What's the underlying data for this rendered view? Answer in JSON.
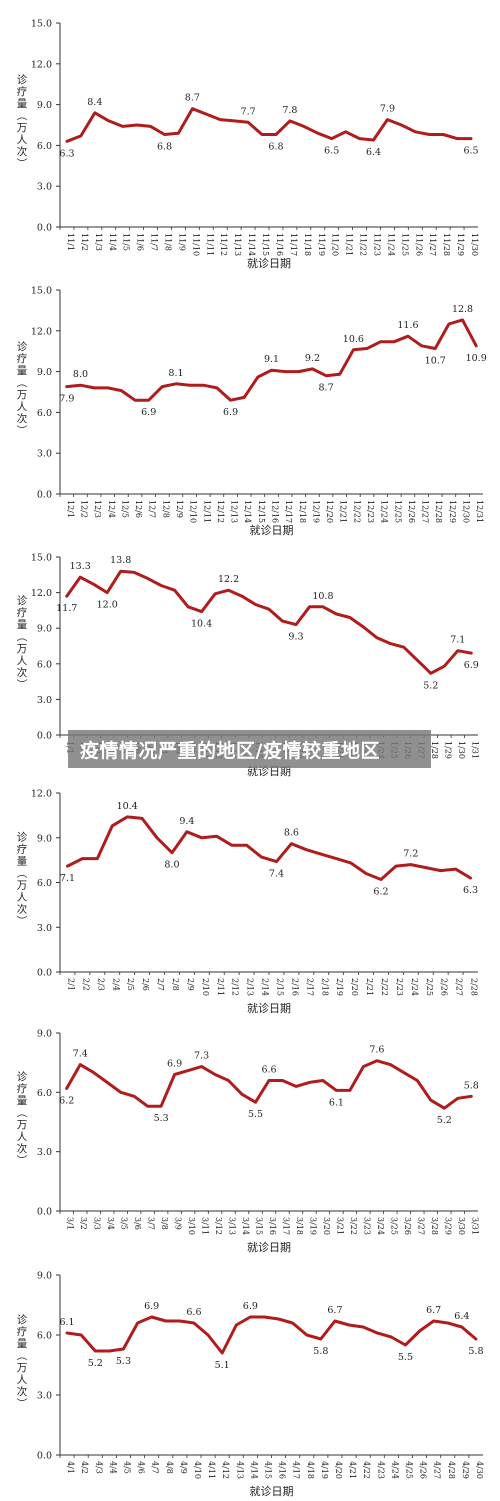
{
  "banner": {
    "text": "疫情情况严重的地区/疫情较重地区"
  },
  "chart_data": [
    {
      "type": "line",
      "ylabel": "诊疗量（万人次）",
      "xlabel": "就诊日期",
      "ylim": [
        0,
        15
      ],
      "yticks": [
        "0.0",
        "3.0",
        "6.0",
        "9.0",
        "12.0",
        "15.0"
      ],
      "color": "#b01c1c",
      "categories": [
        "11/1",
        "11/2",
        "11/3",
        "11/4",
        "11/5",
        "11/6",
        "11/7",
        "11/8",
        "11/9",
        "11/10",
        "11/11",
        "11/12",
        "11/13",
        "11/14",
        "11/15",
        "11/16",
        "11/17",
        "11/18",
        "11/19",
        "11/20",
        "11/21",
        "11/22",
        "11/23",
        "11/24",
        "11/25",
        "11/26",
        "11/27",
        "11/28",
        "11/29",
        "11/30"
      ],
      "values": [
        6.3,
        6.7,
        8.4,
        7.8,
        7.4,
        7.5,
        7.4,
        6.8,
        6.9,
        8.7,
        8.3,
        7.9,
        7.8,
        7.7,
        6.8,
        6.8,
        7.8,
        7.4,
        6.9,
        6.5,
        7.0,
        6.5,
        6.4,
        7.9,
        7.5,
        7.0,
        6.8,
        6.8,
        6.5,
        6.5
      ],
      "labels": [
        {
          "i": 0,
          "t": "6.3",
          "pos": "below"
        },
        {
          "i": 2,
          "t": "8.4",
          "pos": "above"
        },
        {
          "i": 7,
          "t": "6.8",
          "pos": "below"
        },
        {
          "i": 9,
          "t": "8.7",
          "pos": "above"
        },
        {
          "i": 13,
          "t": "7.7",
          "pos": "above"
        },
        {
          "i": 15,
          "t": "6.8",
          "pos": "below"
        },
        {
          "i": 16,
          "t": "7.8",
          "pos": "above"
        },
        {
          "i": 19,
          "t": "6.5",
          "pos": "below"
        },
        {
          "i": 22,
          "t": "6.4",
          "pos": "below"
        },
        {
          "i": 23,
          "t": "7.9",
          "pos": "above"
        },
        {
          "i": 29,
          "t": "6.5",
          "pos": "below"
        }
      ]
    },
    {
      "type": "line",
      "ylabel": "诊疗量（万人次）",
      "xlabel": "就诊日期",
      "ylim": [
        0,
        15
      ],
      "yticks": [
        "0.0",
        "3.0",
        "6.0",
        "9.0",
        "12.0",
        "15.0"
      ],
      "color": "#b01c1c",
      "categories": [
        "12/1",
        "12/2",
        "12/3",
        "12/4",
        "12/5",
        "12/6",
        "12/7",
        "12/8",
        "12/9",
        "12/10",
        "12/11",
        "12/12",
        "12/13",
        "12/14",
        "12/15",
        "12/16",
        "12/17",
        "12/18",
        "12/19",
        "12/20",
        "12/21",
        "12/22",
        "12/23",
        "12/24",
        "12/25",
        "12/26",
        "12/27",
        "12/28",
        "12/29",
        "12/30",
        "12/31"
      ],
      "values": [
        7.9,
        8.0,
        7.8,
        7.8,
        7.6,
        6.9,
        6.9,
        7.9,
        8.1,
        8.0,
        8.0,
        7.8,
        6.9,
        7.1,
        8.6,
        9.1,
        9.0,
        9.0,
        9.2,
        8.7,
        8.8,
        10.6,
        10.7,
        11.2,
        11.2,
        11.6,
        10.9,
        10.7,
        12.5,
        12.8,
        10.9
      ],
      "labels": [
        {
          "i": 0,
          "t": "7.9",
          "pos": "below"
        },
        {
          "i": 1,
          "t": "8.0",
          "pos": "above"
        },
        {
          "i": 6,
          "t": "6.9",
          "pos": "below"
        },
        {
          "i": 8,
          "t": "8.1",
          "pos": "above"
        },
        {
          "i": 12,
          "t": "6.9",
          "pos": "below"
        },
        {
          "i": 15,
          "t": "9.1",
          "pos": "above"
        },
        {
          "i": 18,
          "t": "9.2",
          "pos": "above"
        },
        {
          "i": 19,
          "t": "8.7",
          "pos": "below"
        },
        {
          "i": 21,
          "t": "10.6",
          "pos": "above"
        },
        {
          "i": 25,
          "t": "11.6",
          "pos": "above"
        },
        {
          "i": 27,
          "t": "10.7",
          "pos": "below"
        },
        {
          "i": 29,
          "t": "12.8",
          "pos": "above"
        },
        {
          "i": 30,
          "t": "10.9",
          "pos": "below"
        }
      ]
    },
    {
      "type": "line",
      "ylabel": "诊疗量（万人次）",
      "xlabel": "就诊日期",
      "ylim": [
        0,
        15
      ],
      "yticks": [
        "0.0",
        "3.0",
        "6.0",
        "9.0",
        "12.0",
        "15.0"
      ],
      "color": "#b01c1c",
      "categories": [
        "1/1",
        "1/2",
        "1/3",
        "1/4",
        "1/5",
        "1/6",
        "1/7",
        "1/8",
        "1/9",
        "1/10",
        "1/11",
        "1/12",
        "1/13",
        "1/14",
        "1/15",
        "1/16",
        "1/17",
        "1/18",
        "1/19",
        "1/20",
        "1/21",
        "1/22",
        "1/23",
        "1/24",
        "1/25",
        "1/26",
        "1/27",
        "1/28",
        "1/29",
        "1/30",
        "1/31"
      ],
      "values": [
        11.7,
        13.3,
        12.7,
        12.0,
        13.8,
        13.7,
        13.2,
        12.6,
        12.2,
        10.8,
        10.4,
        11.9,
        12.2,
        11.7,
        11.0,
        10.6,
        9.6,
        9.3,
        10.8,
        10.8,
        10.2,
        9.9,
        9.1,
        8.2,
        7.7,
        7.4,
        6.3,
        5.2,
        5.8,
        7.1,
        6.9
      ],
      "labels": [
        {
          "i": 0,
          "t": "11.7",
          "pos": "below"
        },
        {
          "i": 1,
          "t": "13.3",
          "pos": "above"
        },
        {
          "i": 3,
          "t": "12.0",
          "pos": "below"
        },
        {
          "i": 4,
          "t": "13.8",
          "pos": "above"
        },
        {
          "i": 10,
          "t": "10.4",
          "pos": "below"
        },
        {
          "i": 12,
          "t": "12.2",
          "pos": "above"
        },
        {
          "i": 17,
          "t": "9.3",
          "pos": "below"
        },
        {
          "i": 19,
          "t": "10.8",
          "pos": "above"
        },
        {
          "i": 27,
          "t": "5.2",
          "pos": "below"
        },
        {
          "i": 29,
          "t": "7.1",
          "pos": "above"
        },
        {
          "i": 30,
          "t": "6.9",
          "pos": "below"
        }
      ]
    },
    {
      "type": "line",
      "ylabel": "诊疗量（万人次）",
      "xlabel": "就诊日期",
      "ylim": [
        0,
        12
      ],
      "yticks": [
        "0.0",
        "3.0",
        "6.0",
        "9.0",
        "12.0"
      ],
      "color": "#b01c1c",
      "categories": [
        "2/1",
        "2/2",
        "2/3",
        "2/4",
        "2/5",
        "2/6",
        "2/7",
        "2/8",
        "2/9",
        "2/10",
        "2/11",
        "2/12",
        "2/13",
        "2/14",
        "2/15",
        "2/16",
        "2/17",
        "2/18",
        "2/19",
        "2/20",
        "2/21",
        "2/22",
        "2/23",
        "2/24",
        "2/25",
        "2/26",
        "2/27",
        "2/28"
      ],
      "values": [
        7.1,
        7.6,
        7.6,
        9.8,
        10.4,
        10.3,
        9.0,
        8.0,
        9.4,
        9.0,
        9.1,
        8.5,
        8.5,
        7.7,
        7.4,
        8.6,
        8.2,
        7.9,
        7.6,
        7.3,
        6.6,
        6.2,
        7.1,
        7.2,
        7.0,
        6.8,
        6.9,
        6.3
      ],
      "labels": [
        {
          "i": 0,
          "t": "7.1",
          "pos": "below"
        },
        {
          "i": 4,
          "t": "10.4",
          "pos": "above"
        },
        {
          "i": 7,
          "t": "8.0",
          "pos": "below"
        },
        {
          "i": 8,
          "t": "9.4",
          "pos": "above"
        },
        {
          "i": 14,
          "t": "7.4",
          "pos": "below"
        },
        {
          "i": 15,
          "t": "8.6",
          "pos": "above"
        },
        {
          "i": 21,
          "t": "6.2",
          "pos": "below"
        },
        {
          "i": 23,
          "t": "7.2",
          "pos": "above"
        },
        {
          "i": 27,
          "t": "6.3",
          "pos": "below"
        }
      ]
    },
    {
      "type": "line",
      "ylabel": "诊疗量（万人次）",
      "xlabel": "就诊日期",
      "ylim": [
        0,
        9
      ],
      "yticks": [
        "0.0",
        "3.0",
        "6.0",
        "9.0"
      ],
      "color": "#b01c1c",
      "categories": [
        "3/1",
        "3/2",
        "3/3",
        "3/4",
        "3/5",
        "3/6",
        "3/7",
        "3/8",
        "3/9",
        "3/10",
        "3/11",
        "3/12",
        "3/13",
        "3/14",
        "3/15",
        "3/16",
        "3/17",
        "3/18",
        "3/19",
        "3/20",
        "3/21",
        "3/22",
        "3/23",
        "3/24",
        "3/25",
        "3/26",
        "3/27",
        "3/28",
        "3/29",
        "3/30",
        "3/31"
      ],
      "values": [
        6.2,
        7.4,
        7.0,
        6.5,
        6.0,
        5.8,
        5.3,
        5.3,
        6.9,
        7.1,
        7.3,
        6.9,
        6.6,
        5.9,
        5.5,
        6.6,
        6.6,
        6.3,
        6.5,
        6.6,
        6.1,
        6.1,
        7.3,
        7.6,
        7.4,
        7.0,
        6.6,
        5.6,
        5.2,
        5.7,
        5.8
      ],
      "labels": [
        {
          "i": 0,
          "t": "6.2",
          "pos": "below"
        },
        {
          "i": 1,
          "t": "7.4",
          "pos": "above"
        },
        {
          "i": 7,
          "t": "5.3",
          "pos": "below"
        },
        {
          "i": 8,
          "t": "6.9",
          "pos": "above"
        },
        {
          "i": 10,
          "t": "7.3",
          "pos": "above"
        },
        {
          "i": 14,
          "t": "5.5",
          "pos": "below"
        },
        {
          "i": 15,
          "t": "6.6",
          "pos": "above"
        },
        {
          "i": 20,
          "t": "6.1",
          "pos": "below"
        },
        {
          "i": 23,
          "t": "7.6",
          "pos": "above"
        },
        {
          "i": 28,
          "t": "5.2",
          "pos": "below"
        },
        {
          "i": 30,
          "t": "5.8",
          "pos": "above"
        }
      ]
    },
    {
      "type": "line",
      "ylabel": "诊疗量（万人次）",
      "xlabel": "就诊日期",
      "ylim": [
        0,
        9
      ],
      "yticks": [
        "0.0",
        "3.0",
        "6.0",
        "9.0"
      ],
      "color": "#b01c1c",
      "categories": [
        "4/1",
        "4/2",
        "4/3",
        "4/4",
        "4/5",
        "4/6",
        "4/7",
        "4/8",
        "4/9",
        "4/10",
        "4/11",
        "4/12",
        "4/13",
        "4/14",
        "4/15",
        "4/16",
        "4/17",
        "4/18",
        "4/19",
        "4/20",
        "4/21",
        "4/22",
        "4/23",
        "4/24",
        "4/25",
        "4/26",
        "4/27",
        "4/28",
        "4/29",
        "4/30"
      ],
      "values": [
        6.1,
        6.0,
        5.2,
        5.2,
        5.3,
        6.6,
        6.9,
        6.7,
        6.7,
        6.6,
        6.0,
        5.1,
        6.5,
        6.9,
        6.9,
        6.8,
        6.6,
        6.0,
        5.8,
        6.7,
        6.5,
        6.4,
        6.1,
        5.9,
        5.5,
        6.2,
        6.7,
        6.6,
        6.4,
        5.8
      ],
      "labels": [
        {
          "i": 0,
          "t": "6.1",
          "pos": "above"
        },
        {
          "i": 2,
          "t": "5.2",
          "pos": "below"
        },
        {
          "i": 4,
          "t": "5.3",
          "pos": "below"
        },
        {
          "i": 6,
          "t": "6.9",
          "pos": "above"
        },
        {
          "i": 9,
          "t": "6.6",
          "pos": "above"
        },
        {
          "i": 11,
          "t": "5.1",
          "pos": "below"
        },
        {
          "i": 13,
          "t": "6.9",
          "pos": "above"
        },
        {
          "i": 18,
          "t": "5.8",
          "pos": "below"
        },
        {
          "i": 19,
          "t": "6.7",
          "pos": "above"
        },
        {
          "i": 24,
          "t": "5.5",
          "pos": "below"
        },
        {
          "i": 26,
          "t": "6.7",
          "pos": "above"
        },
        {
          "i": 28,
          "t": "6.4",
          "pos": "above"
        },
        {
          "i": 29,
          "t": "5.8",
          "pos": "below"
        }
      ]
    }
  ]
}
